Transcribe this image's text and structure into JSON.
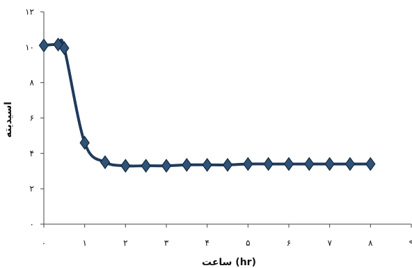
{
  "chart_data": {
    "type": "line",
    "title": "",
    "xlabel": "ساعت (hr)",
    "ylabel": "اسیدیته",
    "xlim": [
      0,
      9
    ],
    "ylim": [
      0,
      12
    ],
    "x_ticks": [
      0,
      1,
      2,
      3,
      4,
      5,
      6,
      7,
      8,
      9
    ],
    "x_tick_labels": [
      "۰",
      "۱",
      "۲",
      "۳",
      "۴",
      "۵",
      "۶",
      "۷",
      "۸",
      "۹"
    ],
    "y_ticks": [
      0,
      2,
      4,
      6,
      8,
      10,
      12
    ],
    "y_tick_labels": [
      "۰",
      "۲",
      "۴",
      "۶",
      "۸",
      "۱۰",
      "۱۲"
    ],
    "grid": false,
    "legend": "none",
    "series_color": "#1f3b5c",
    "series": [
      {
        "x": [
          0,
          0.35,
          0.5,
          1,
          1.5,
          2,
          2.5,
          3,
          3.5,
          4,
          4.5,
          5,
          5.5,
          6,
          6.5,
          7,
          7.5,
          8
        ],
        "values": [
          10.1,
          10.15,
          9.95,
          4.6,
          3.5,
          3.3,
          3.3,
          3.3,
          3.35,
          3.35,
          3.35,
          3.4,
          3.4,
          3.4,
          3.4,
          3.4,
          3.4,
          3.4
        ]
      }
    ]
  }
}
